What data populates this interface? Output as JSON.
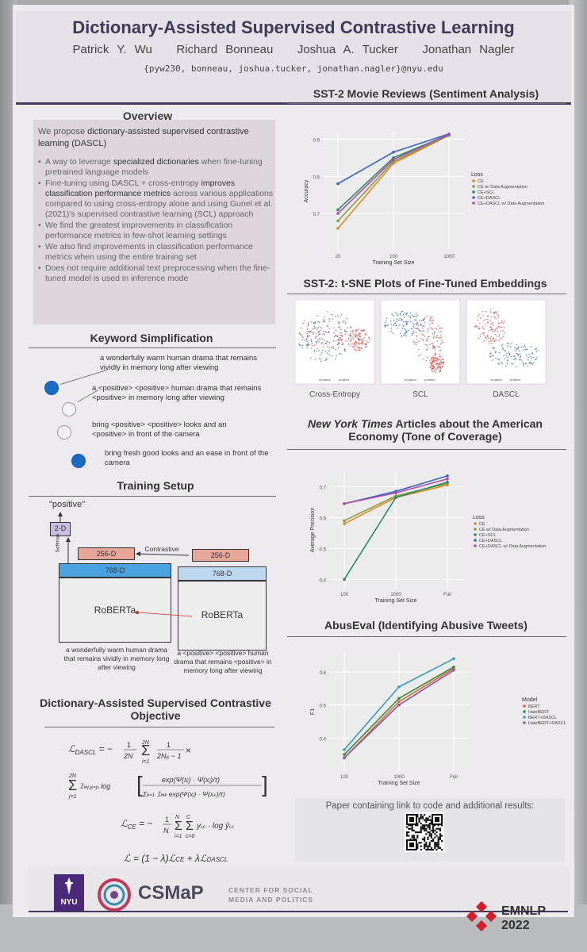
{
  "poster": {
    "title": "Dictionary-Assisted Supervised Contrastive Learning",
    "authors": [
      "Patrick Y. Wu",
      "Richard Bonneau",
      "Joshua A. Tucker",
      "Jonathan Nagler"
    ],
    "emails": "{pyw230, bonneau, joshua.tucker, jonathan.nagler}@nyu.edu"
  },
  "overview": {
    "heading": "Overview",
    "intro_a": "We propose ",
    "intro_b": "dictionary-assisted supervised contrastive learning (DASCL)",
    "bullets": [
      {
        "pre": "A way to leverage ",
        "bold": "specialized dictionaries",
        "post": " when fine-tuning pretrained language models"
      },
      {
        "pre": "Fine-tuning using DASCL + cross-entropy ",
        "bold": "improves classification performance metrics",
        "post": " across various applications compared to using cross-entropy alone and using Gunel et al. (2021)'s supervised contrastive learning (SCL) approach"
      },
      {
        "pre": "We find the greatest improvements in classification performance metrics in few-shot learning settings",
        "bold": "",
        "post": ""
      },
      {
        "pre": "We also find improvements in classification performance metrics when using the entire training set",
        "bold": "",
        "post": ""
      },
      {
        "pre": "Does not require additional text preprocessing when the fine-tuned model is used in inference mode",
        "bold": "",
        "post": ""
      }
    ]
  },
  "keyword": {
    "heading": "Keyword Simplification",
    "sentences": [
      "a wonderfully warm human drama that remains vividly in memory long after viewing",
      "a <positive> <positive> human drama that remains <positive> in memory long after viewing",
      "bring <positive> <positive> looks and an <positive> in front of the camera",
      "bring fresh good looks and an ease in front of the camera"
    ]
  },
  "training": {
    "heading": "Training Setup",
    "output_label": "\"positive\"",
    "box_2d": "2-D",
    "softmax": "Softmax",
    "box_256_left": "256-D",
    "box_256_right": "256-D",
    "contrastive": "Contrastive",
    "box_768_left": "768-D",
    "box_768_right": "768-D",
    "roberta_left": "RoBERTa",
    "roberta_right": "RoBERTa",
    "caption_left": "a wonderfully warm human drama that remains vividly in memory long after viewing",
    "caption_right": "a <positive> <positive> human drama that remains <positive> in memory long after viewing"
  },
  "objective": {
    "heading_1": "Dictionary-Assisted Supervised Contrastive",
    "heading_2": "Objective"
  },
  "sst2": {
    "heading": "SST-2 Movie Reviews (Sentiment Analysis)"
  },
  "tsne": {
    "heading": "SST-2: t-SNE Plots of Fine-Tuned Embeddings",
    "panels": [
      "Cross-Entropy",
      "SCL",
      "DASCL"
    ],
    "legend_neg": "negative",
    "legend_pos": "positive"
  },
  "nyt": {
    "heading_italic": "New York Times",
    "heading_rest": " Articles about the American",
    "heading_2": "Economy (Tone of Coverage)"
  },
  "abuseval": {
    "heading": "AbusEval (Identifying Abusive Tweets)"
  },
  "paper_link": "Paper containing link to code and additional results:",
  "footer": {
    "nyu": "NYU",
    "csmap": "CSMaP",
    "csmap_line1": "CENTER FOR SOCIAL",
    "csmap_line2": "MEDIA AND POLITICS",
    "emnlp": "EMNLP",
    "year": "2022"
  },
  "chart_data": [
    {
      "type": "line",
      "title": "SST-2 Movie Reviews (Sentiment Analysis)",
      "xlabel": "Training Set Size",
      "ylabel": "Accuracy",
      "x": [
        "20",
        "100",
        "1000"
      ],
      "ylim": [
        0.6,
        0.92
      ],
      "yticks": [
        0.7,
        0.8,
        0.9
      ],
      "legend_title": "Loss",
      "legend_position": "right",
      "series": [
        {
          "name": "CE",
          "color": "#d98a2b",
          "values": [
            0.66,
            0.835,
            0.91
          ]
        },
        {
          "name": "CE w/ Data Augmentation",
          "color": "#8a9a3a",
          "values": [
            0.68,
            0.84,
            0.91
          ]
        },
        {
          "name": "CE+SCL",
          "color": "#2a8a6a",
          "values": [
            0.71,
            0.85,
            0.912
          ]
        },
        {
          "name": "CE+DASCL",
          "color": "#3a66c4",
          "values": [
            0.78,
            0.865,
            0.914
          ]
        },
        {
          "name": "CE+DASCL w/ Data Augmentation",
          "color": "#b04aa8",
          "values": [
            0.7,
            0.845,
            0.913
          ]
        }
      ]
    },
    {
      "type": "line",
      "title": "New York Times Articles about the American Economy (Tone of Coverage)",
      "xlabel": "Training Set Size",
      "ylabel": "Average Precision",
      "x": [
        "100",
        "1000",
        "Full"
      ],
      "ylim": [
        0.37,
        0.75
      ],
      "yticks": [
        0.4,
        0.5,
        0.6,
        0.7
      ],
      "legend_title": "Loss",
      "legend_position": "right",
      "series": [
        {
          "name": "CE",
          "color": "#d98a2b",
          "values": [
            0.58,
            0.665,
            0.705
          ]
        },
        {
          "name": "CE w/ Data Augmentation",
          "color": "#8a9a3a",
          "values": [
            0.59,
            0.67,
            0.71
          ]
        },
        {
          "name": "CE+SCL",
          "color": "#2a8a6a",
          "values": [
            0.4,
            0.665,
            0.715
          ]
        },
        {
          "name": "CE+DASCL",
          "color": "#3a66c4",
          "values": [
            0.645,
            0.685,
            0.735
          ]
        },
        {
          "name": "CE+DASCL w/ Data Augmentation",
          "color": "#b04aa8",
          "values": [
            0.645,
            0.68,
            0.725
          ]
        }
      ]
    },
    {
      "type": "line",
      "title": "AbusEval (Identifying Abusive Tweets)",
      "xlabel": "Training Set Size",
      "ylabel": "F1",
      "x": [
        "100",
        "1000",
        "Full"
      ],
      "ylim": [
        0.3,
        0.66
      ],
      "yticks": [
        0.4,
        0.5,
        0.6
      ],
      "legend_title": "Model",
      "legend_position": "right",
      "series": [
        {
          "name": "BERT",
          "color": "#d96a3a",
          "values": [
            0.34,
            0.51,
            0.61
          ]
        },
        {
          "name": "HateBERT",
          "color": "#3a8a3a",
          "values": [
            0.35,
            0.52,
            0.615
          ]
        },
        {
          "name": "BERT+DASCL",
          "color": "#3a9ac4",
          "values": [
            0.365,
            0.555,
            0.64
          ]
        },
        {
          "name": "HateBERT+DASCL",
          "color": "#8a5aa8",
          "values": [
            0.34,
            0.5,
            0.605
          ]
        }
      ]
    }
  ]
}
